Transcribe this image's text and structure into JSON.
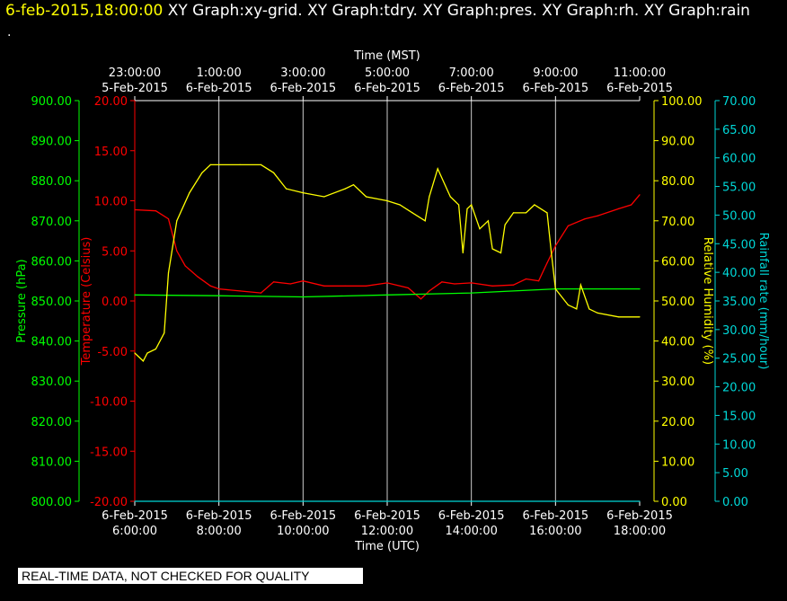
{
  "header": {
    "timestamp": "6-feb-2015,18:00:00",
    "graphs": "XY Graph:xy-grid.  XY Graph:tdry.  XY Graph:pres.  XY Graph:rh.  XY Graph:rain",
    "dot": "."
  },
  "footer": {
    "banner": "REAL-TIME DATA, NOT CHECKED FOR QUALITY"
  },
  "colors": {
    "temperature": "#ff0000",
    "pressure": "#00ff00",
    "humidity": "#ffff00",
    "rain": "#00d8d8",
    "grid": "#ffffff"
  },
  "chart_data": {
    "type": "line",
    "x_top_label": "Time (MST)",
    "x_bottom_label": "Time (UTC)",
    "x_ticks_top": [
      [
        "23:00:00",
        "5-Feb-2015"
      ],
      [
        "1:00:00",
        "6-Feb-2015"
      ],
      [
        "3:00:00",
        "6-Feb-2015"
      ],
      [
        "5:00:00",
        "6-Feb-2015"
      ],
      [
        "7:00:00",
        "6-Feb-2015"
      ],
      [
        "9:00:00",
        "6-Feb-2015"
      ],
      [
        "11:00:00",
        "6-Feb-2015"
      ]
    ],
    "x_ticks_bottom": [
      [
        "6-Feb-2015",
        "6:00:00"
      ],
      [
        "6-Feb-2015",
        "8:00:00"
      ],
      [
        "6-Feb-2015",
        "10:00:00"
      ],
      [
        "6-Feb-2015",
        "12:00:00"
      ],
      [
        "6-Feb-2015",
        "14:00:00"
      ],
      [
        "6-Feb-2015",
        "16:00:00"
      ],
      [
        "6-Feb-2015",
        "18:00:00"
      ]
    ],
    "xlim_hours_utc": [
      6,
      18
    ],
    "axes": {
      "pressure": {
        "label": "Pressure (hPa)",
        "ylim": [
          800,
          900
        ],
        "ticks": [
          "800.00",
          "810.00",
          "820.00",
          "830.00",
          "840.00",
          "850.00",
          "860.00",
          "870.00",
          "880.00",
          "890.00",
          "900.00"
        ]
      },
      "temperature": {
        "label": "Temperature (Celsius)",
        "ylim": [
          -20,
          20
        ],
        "ticks": [
          "-20.00",
          "-15.00",
          "-10.00",
          "-5.00",
          "0.00",
          "5.00",
          "10.00",
          "15.00",
          "20.00"
        ]
      },
      "humidity": {
        "label": "Relative Humidity (%)",
        "ylim": [
          0,
          100
        ],
        "ticks": [
          "0.00",
          "10.00",
          "20.00",
          "30.00",
          "40.00",
          "50.00",
          "60.00",
          "70.00",
          "80.00",
          "90.00",
          "100.00"
        ]
      },
      "rain": {
        "label": "Rainfall rate (mm/hour)",
        "ylim": [
          0,
          70
        ],
        "ticks": [
          "0.00",
          "5.00",
          "10.00",
          "15.00",
          "20.00",
          "25.00",
          "30.00",
          "35.00",
          "40.00",
          "45.00",
          "50.00",
          "55.00",
          "60.00",
          "65.00",
          "70.00"
        ]
      }
    },
    "series": [
      {
        "name": "tdry",
        "axis": "temperature",
        "x": [
          6.0,
          6.5,
          6.8,
          7.0,
          7.2,
          7.5,
          7.8,
          8.0,
          8.5,
          9.0,
          9.3,
          9.7,
          10.0,
          10.5,
          11.0,
          11.5,
          12.0,
          12.5,
          12.8,
          13.0,
          13.3,
          13.6,
          14.0,
          14.5,
          15.0,
          15.3,
          15.6,
          15.8,
          16.0,
          16.3,
          16.7,
          17.0,
          17.5,
          17.8,
          18.0
        ],
        "y": [
          9.1,
          9.0,
          8.2,
          5.0,
          3.5,
          2.4,
          1.5,
          1.2,
          1.0,
          0.8,
          1.9,
          1.7,
          2.0,
          1.5,
          1.5,
          1.5,
          1.8,
          1.3,
          0.2,
          1.0,
          1.9,
          1.7,
          1.8,
          1.5,
          1.6,
          2.2,
          2.0,
          3.8,
          5.5,
          7.5,
          8.2,
          8.5,
          9.2,
          9.6,
          10.6
        ]
      },
      {
        "name": "pres",
        "axis": "pressure",
        "x": [
          6.0,
          8.0,
          10.0,
          12.0,
          14.0,
          16.0,
          18.0
        ],
        "y": [
          851.5,
          851.3,
          851.0,
          851.5,
          852.0,
          853.0,
          853.0
        ]
      },
      {
        "name": "rh",
        "axis": "humidity",
        "x": [
          6.0,
          6.2,
          6.3,
          6.5,
          6.7,
          6.8,
          7.0,
          7.3,
          7.6,
          7.8,
          8.0,
          8.5,
          9.0,
          9.3,
          9.6,
          10.0,
          10.5,
          11.0,
          11.2,
          11.5,
          12.0,
          12.3,
          12.6,
          12.9,
          13.0,
          13.2,
          13.5,
          13.7,
          13.8,
          13.9,
          14.0,
          14.2,
          14.4,
          14.5,
          14.7,
          14.8,
          15.0,
          15.3,
          15.5,
          15.8,
          15.9,
          16.0,
          16.3,
          16.5,
          16.6,
          16.8,
          17.0,
          17.5,
          18.0
        ],
        "y": [
          37,
          35,
          37,
          38,
          42,
          57,
          70,
          77,
          82,
          84,
          84,
          84,
          84,
          82,
          78,
          77,
          76,
          78,
          79,
          76,
          75,
          74,
          72,
          70,
          76,
          83,
          76,
          74,
          62,
          73,
          74,
          68,
          70,
          63,
          62,
          69,
          72,
          72,
          74,
          72,
          62,
          53,
          49,
          48,
          54,
          48,
          47,
          46,
          46
        ]
      },
      {
        "name": "rain",
        "axis": "rain",
        "x": [
          6.0,
          18.0
        ],
        "y": [
          0,
          0
        ]
      }
    ]
  }
}
